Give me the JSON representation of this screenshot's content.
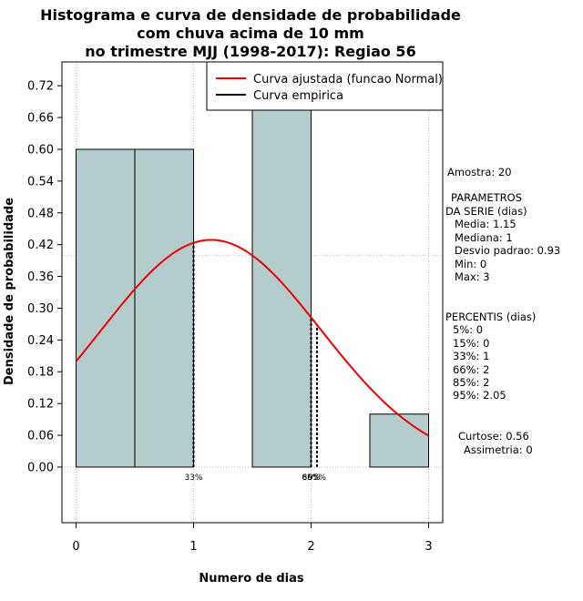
{
  "chart_data": {
    "type": "bar",
    "title_lines": [
      "Histograma e curva de densidade de probabilidade",
      "com chuva acima de 10 mm",
      "no trimestre MJJ (1998-2017): Regiao 56"
    ],
    "xlabel": "Numero de dias",
    "ylabel": "Densidade de probabilidade",
    "xlim": [
      -0.12,
      3.12
    ],
    "ylim": [
      -0.105,
      0.765
    ],
    "x_ticks": [
      0,
      1,
      2,
      3
    ],
    "y_ticks": [
      0.0,
      0.06,
      0.12,
      0.18,
      0.24,
      0.3,
      0.36,
      0.42,
      0.48,
      0.54,
      0.6,
      0.66,
      0.72
    ],
    "y_tick_labels": [
      "0.00",
      "0.06",
      "0.12",
      "0.18",
      "0.24",
      "0.30",
      "0.36",
      "0.42",
      "0.48",
      "0.54",
      "0.60",
      "0.66",
      "0.72"
    ],
    "bars": [
      {
        "x0": 0.0,
        "x1": 0.5,
        "value": 0.6
      },
      {
        "x0": 0.5,
        "x1": 1.0,
        "value": 0.6
      },
      {
        "x0": 1.5,
        "x1": 2.0,
        "value": 0.7
      },
      {
        "x0": 2.5,
        "x1": 3.0,
        "value": 0.1
      }
    ],
    "bar_color": "#b4cccb",
    "normal_curve": {
      "mean": 1.15,
      "sd": 0.93,
      "x_range": [
        0,
        3
      ],
      "color": "#ee0000"
    },
    "legend": {
      "position": "top-right",
      "entries": [
        {
          "label": "Curva ajustada (funcao Normal)",
          "color": "#ee0000"
        },
        {
          "label": "Curva empirica",
          "color": "#000000"
        }
      ]
    },
    "grid": true,
    "grid_x": [
      0,
      1,
      2,
      3
    ],
    "grid_y": [
      0.0,
      0.4
    ],
    "percentile_lines": [
      {
        "x": 1.0,
        "label": "33%"
      },
      {
        "x": 2.0,
        "label": "66%"
      },
      {
        "x": 2.0,
        "label": "85%"
      },
      {
        "x": 2.05,
        "label": "95%"
      }
    ]
  },
  "stats": {
    "amostra": "Amostra: 20",
    "param_title1": "PARAMETROS",
    "param_title2": "DA SERIE (dias)",
    "media": "Media: 1.15",
    "mediana": "Mediana: 1",
    "desvio": "Desvio padrao: 0.93",
    "min": "Min: 0",
    "max": "Max: 3",
    "perc_title": "PERCENTIS (dias)",
    "p5": "5%: 0",
    "p15": "15%: 0",
    "p33": "33%: 1",
    "p66": "66%: 2",
    "p85": "85%: 2",
    "p95": "95%: 2.05",
    "curtose": "Curtose: 0.56",
    "assimetria": "Assimetria: 0"
  }
}
